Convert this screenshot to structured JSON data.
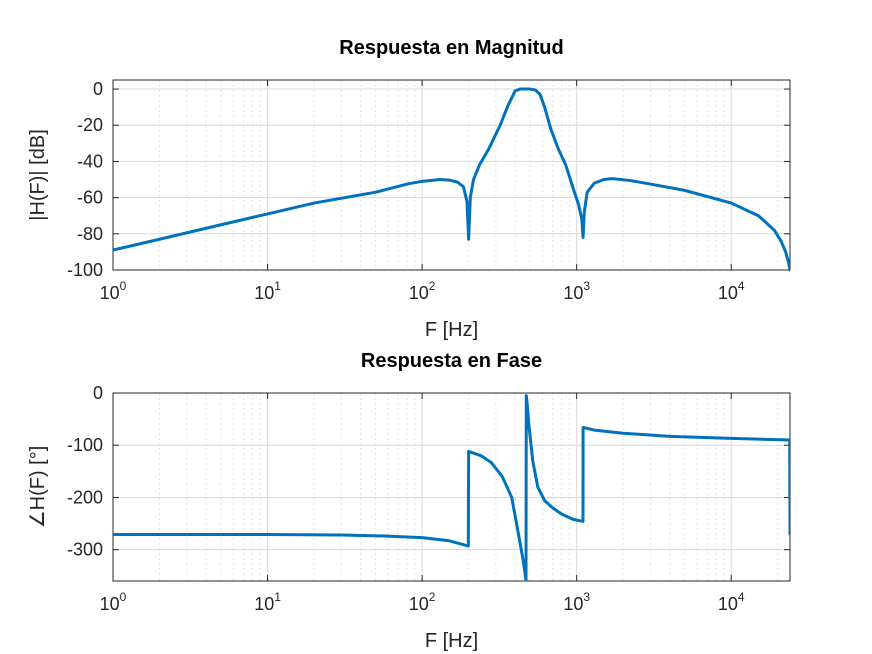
{
  "colors": {
    "series": "#0072bd",
    "axis": "#262626",
    "grid": "#d9d9d9",
    "background": "#ffffff"
  },
  "chart_data": [
    {
      "type": "line",
      "title": "Respuesta en Magnitud",
      "xlabel": "F [Hz]",
      "ylabel": "|H(F)| [dB]",
      "xscale": "log",
      "xlim": [
        1,
        24000
      ],
      "ylim": [
        -100,
        5
      ],
      "grid": true,
      "x_ticks": [
        {
          "base": "10",
          "exp": "0"
        },
        {
          "base": "10",
          "exp": "1"
        },
        {
          "base": "10",
          "exp": "2"
        },
        {
          "base": "10",
          "exp": "3"
        },
        {
          "base": "10",
          "exp": "4"
        }
      ],
      "y_ticks": [
        "0",
        "-20",
        "-40",
        "-60",
        "-80",
        "-100"
      ],
      "series": [
        {
          "x": [
            1,
            2,
            5,
            10,
            20,
            50,
            80,
            100,
            130,
            150,
            170,
            185,
            195,
            200,
            205,
            215,
            235,
            270,
            320,
            360,
            400,
            430,
            460,
            500,
            540,
            580,
            620,
            680,
            760,
            850,
            950,
            1030,
            1080,
            1100,
            1120,
            1170,
            1300,
            1500,
            1700,
            2200,
            3000,
            5000,
            10000,
            15000,
            19000,
            21000,
            22500,
            23500,
            24000
          ],
          "y": [
            -89,
            -83,
            -75,
            -69,
            -63,
            -57,
            -52.5,
            -51,
            -50,
            -50.3,
            -51.5,
            -54,
            -62,
            -83,
            -60,
            -50,
            -42,
            -33,
            -20,
            -9,
            -1,
            0,
            0,
            0,
            -0.5,
            -3,
            -10,
            -22,
            -33,
            -42,
            -55,
            -64,
            -72,
            -82,
            -68,
            -57,
            -52,
            -50,
            -49.5,
            -50.5,
            -52.5,
            -56,
            -63,
            -70,
            -78,
            -84,
            -90,
            -96,
            -100
          ]
        }
      ]
    },
    {
      "type": "line",
      "title": "Respuesta en Fase",
      "xlabel": "F [Hz]",
      "ylabel": "∠H(F) [°]",
      "xscale": "log",
      "xlim": [
        1,
        24000
      ],
      "ylim": [
        -360,
        0
      ],
      "grid": true,
      "x_ticks": [
        {
          "base": "10",
          "exp": "0"
        },
        {
          "base": "10",
          "exp": "1"
        },
        {
          "base": "10",
          "exp": "2"
        },
        {
          "base": "10",
          "exp": "3"
        },
        {
          "base": "10",
          "exp": "4"
        }
      ],
      "y_ticks": [
        "0",
        "-100",
        "-200",
        "-300"
      ],
      "series": [
        {
          "x": [
            1,
            10,
            30,
            60,
            100,
            150,
            199,
            200,
            210,
            240,
            280,
            330,
            380,
            420,
            450,
            470,
            472,
            478,
            490,
            520,
            560,
            620,
            700,
            800,
            950,
            1099,
            1100,
            1300,
            2000,
            4000,
            10000,
            23900,
            24000
          ],
          "y": [
            -271,
            -271,
            -272,
            -274,
            -277,
            -283,
            -293,
            -112,
            -114,
            -120,
            -133,
            -160,
            -200,
            -270,
            -320,
            -358,
            -5,
            -20,
            -60,
            -130,
            -180,
            -206,
            -220,
            -232,
            -242,
            -246,
            -66,
            -71,
            -77,
            -83,
            -87,
            -90,
            -270
          ]
        }
      ]
    }
  ]
}
